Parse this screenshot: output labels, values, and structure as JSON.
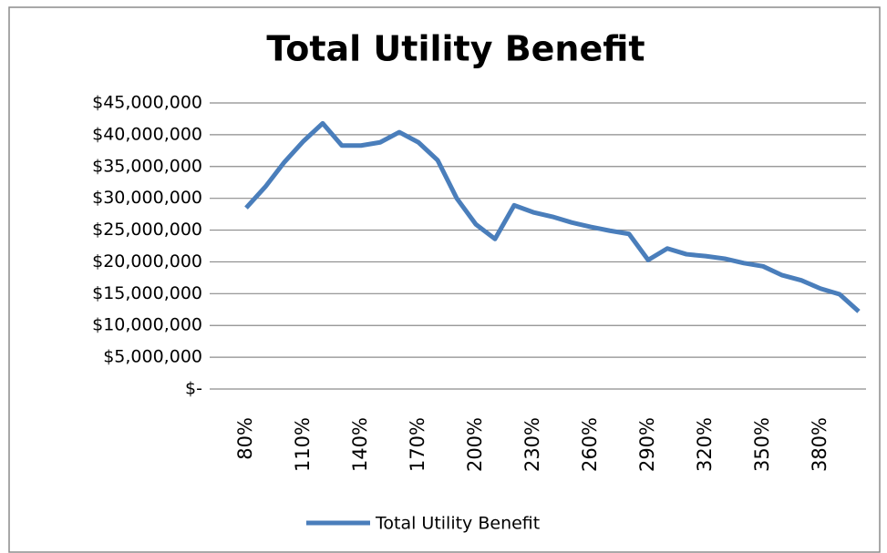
{
  "chart_data": {
    "type": "line",
    "title": "Total Utility Benefit",
    "categories": [
      "80%",
      null,
      null,
      "110%",
      null,
      null,
      "140%",
      null,
      null,
      "170%",
      null,
      null,
      "200%",
      null,
      null,
      "230%",
      null,
      null,
      "260%",
      null,
      null,
      "290%",
      null,
      null,
      "320%",
      null,
      null,
      "350%",
      null,
      null,
      "380%",
      null,
      null
    ],
    "series": [
      {
        "name": "Total Utility Benefit",
        "color": "#4a7ebb",
        "values": [
          28500000,
          31800000,
          35700000,
          39000000,
          41800000,
          38300000,
          38300000,
          38800000,
          40400000,
          38800000,
          36000000,
          30000000,
          25900000,
          23600000,
          28900000,
          27800000,
          27100000,
          26200000,
          25500000,
          24900000,
          24400000,
          20300000,
          22100000,
          21200000,
          20900000,
          20500000,
          19800000,
          19300000,
          17900000,
          17100000,
          15800000,
          14900000,
          12200000
        ]
      }
    ],
    "ylim": [
      0,
      45000000
    ],
    "yticks": [
      {
        "value": 0,
        "label": "$-"
      },
      {
        "value": 5000000,
        "label": "$5,000,000"
      },
      {
        "value": 10000000,
        "label": "$10,000,000"
      },
      {
        "value": 15000000,
        "label": "$15,000,000"
      },
      {
        "value": 20000000,
        "label": "$20,000,000"
      },
      {
        "value": 25000000,
        "label": "$25,000,000"
      },
      {
        "value": 30000000,
        "label": "$30,000,000"
      },
      {
        "value": 35000000,
        "label": "$35,000,000"
      },
      {
        "value": 40000000,
        "label": "$40,000,000"
      },
      {
        "value": 45000000,
        "label": "$45,000,000"
      }
    ],
    "grid": true,
    "legend": "bottom"
  }
}
